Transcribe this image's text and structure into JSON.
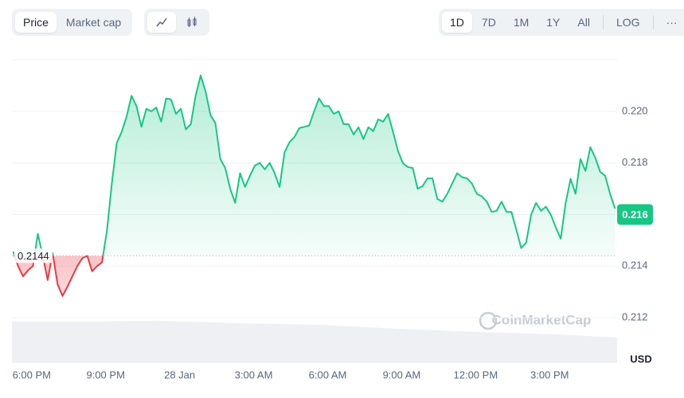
{
  "toolbar": {
    "tabs": [
      "Price",
      "Market cap"
    ],
    "ranges": [
      "1D",
      "7D",
      "1M",
      "1Y",
      "All"
    ],
    "scale": "LOG",
    "more": "···"
  },
  "watermark": "CoinMarketCap",
  "chart_data": {
    "type": "line",
    "y_unit": "USD",
    "baseline": 0.2144,
    "price_tag": 0.216,
    "up_color": "#16c784",
    "down_color": "#ea3943",
    "grid": true,
    "xlim": [
      -0.8,
      23.8
    ],
    "ylim": [
      0.2108,
      0.222
    ],
    "xticks": [
      {
        "value": 0,
        "label": "6:00 PM"
      },
      {
        "value": 3,
        "label": "9:00 PM"
      },
      {
        "value": 6,
        "label": "28 Jan"
      },
      {
        "value": 9,
        "label": "3:00 AM"
      },
      {
        "value": 12,
        "label": "6:00 AM"
      },
      {
        "value": 15,
        "label": "9:00 AM"
      },
      {
        "value": 18,
        "label": "12:00 PM"
      },
      {
        "value": 21,
        "label": "3:00 PM"
      }
    ],
    "yticks": [
      0.212,
      0.214,
      0.216,
      0.218,
      {
        "value": 0.22,
        "label": "0.220"
      }
    ],
    "x": [
      -0.75,
      -0.55,
      -0.35,
      -0.15,
      0.05,
      0.25,
      0.45,
      0.65,
      0.85,
      1.05,
      1.25,
      1.45,
      1.65,
      1.85,
      2.05,
      2.25,
      2.45,
      2.65,
      2.85,
      3.05,
      3.25,
      3.45,
      3.65,
      3.85,
      4.05,
      4.25,
      4.45,
      4.65,
      4.85,
      5.05,
      5.25,
      5.45,
      5.65,
      5.85,
      6.05,
      6.25,
      6.45,
      6.65,
      6.85,
      7.05,
      7.25,
      7.45,
      7.65,
      7.85,
      8.05,
      8.25,
      8.45,
      8.65,
      8.85,
      9.05,
      9.25,
      9.45,
      9.65,
      9.85,
      10.05,
      10.25,
      10.45,
      10.65,
      10.85,
      11.05,
      11.25,
      11.45,
      11.65,
      11.85,
      12.05,
      12.25,
      12.45,
      12.65,
      12.85,
      13.05,
      13.25,
      13.45,
      13.65,
      13.85,
      14.05,
      14.25,
      14.45,
      14.65,
      14.85,
      15.05,
      15.25,
      15.45,
      15.65,
      15.85,
      16.05,
      16.25,
      16.45,
      16.65,
      16.85,
      17.05,
      17.25,
      17.45,
      17.65,
      17.85,
      18.05,
      18.25,
      18.45,
      18.65,
      18.85,
      19.05,
      19.25,
      19.45,
      19.65,
      19.85,
      20.05,
      20.25,
      20.45,
      20.65,
      20.85,
      21.05,
      21.25,
      21.45,
      21.65,
      21.85,
      22.05,
      22.25,
      22.45,
      22.65,
      22.85,
      23.05,
      23.25,
      23.45,
      23.65
    ],
    "values": [
      0.21456,
      0.214,
      0.2136,
      0.21383,
      0.214,
      0.21525,
      0.2144,
      0.21346,
      0.21451,
      0.2133,
      0.21284,
      0.2132,
      0.2136,
      0.214,
      0.2143,
      0.2144,
      0.2138,
      0.214,
      0.21414,
      0.21537,
      0.21722,
      0.21877,
      0.2192,
      0.2198,
      0.2206,
      0.2202,
      0.2194,
      0.2201,
      0.22,
      0.22015,
      0.2196,
      0.2205,
      0.22046,
      0.2199,
      0.2201,
      0.2193,
      0.2195,
      0.22062,
      0.22139,
      0.22077,
      0.21985,
      0.21954,
      0.21815,
      0.2178,
      0.217,
      0.21645,
      0.2176,
      0.21707,
      0.2175,
      0.2179,
      0.218,
      0.21775,
      0.218,
      0.2176,
      0.21707,
      0.2184,
      0.2188,
      0.219,
      0.21935,
      0.2194,
      0.21945,
      0.22,
      0.2205,
      0.2202,
      0.2202,
      0.2199,
      0.22,
      0.2195,
      0.2195,
      0.2191,
      0.21938,
      0.21892,
      0.21938,
      0.21923,
      0.21969,
      0.2196,
      0.2199,
      0.2192,
      0.21846,
      0.21799,
      0.21784,
      0.2178,
      0.217,
      0.2171,
      0.2174,
      0.2174,
      0.2166,
      0.2165,
      0.2168,
      0.2172,
      0.2176,
      0.21745,
      0.2174,
      0.2172,
      0.2168,
      0.2167,
      0.2165,
      0.2161,
      0.21614,
      0.2165,
      0.2161,
      0.2161,
      0.2154,
      0.2147,
      0.21491,
      0.21599,
      0.21645,
      0.21614,
      0.2163,
      0.21599,
      0.2155,
      0.21506,
      0.21645,
      0.21738,
      0.2168,
      0.21815,
      0.21769,
      0.21861,
      0.2182,
      0.21765,
      0.2175,
      0.2168,
      0.21623
    ]
  }
}
